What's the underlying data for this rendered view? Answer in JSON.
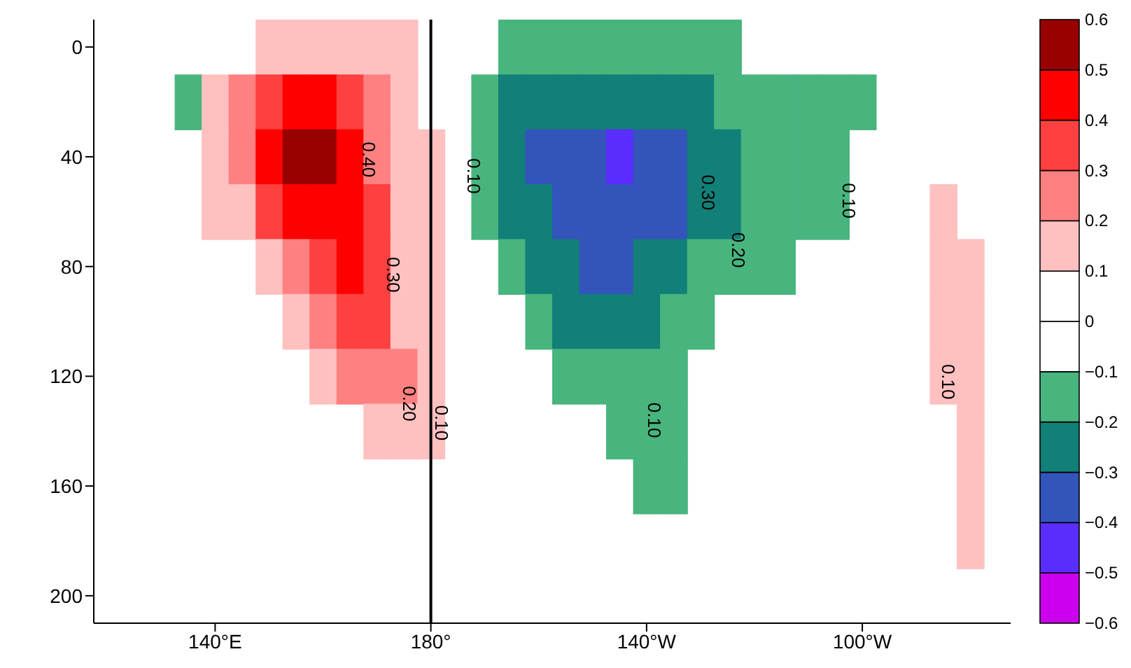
{
  "chart_data": {
    "type": "heatmap",
    "categories": [
      null,
      null,
      null,
      null,
      "140°E",
      null,
      null,
      null,
      null,
      null,
      null,
      null,
      "180°",
      null,
      null,
      null,
      null,
      null,
      null,
      null,
      "140°W",
      null,
      null,
      null,
      null,
      null,
      null,
      null,
      "100°W",
      null,
      null,
      null,
      null,
      null
    ],
    "y_categories": [
      "0",
      null,
      "40",
      null,
      "80",
      null,
      "120",
      null,
      "160",
      null,
      "200"
    ],
    "clim": [
      -0.6,
      0.6
    ],
    "cticks": [
      {
        "value": -0.6,
        "label": "−0.6"
      },
      {
        "value": -0.5,
        "label": "−0.5"
      },
      {
        "value": -0.4,
        "label": "−0.4"
      },
      {
        "value": -0.3,
        "label": "−0.3"
      },
      {
        "value": -0.2,
        "label": "−0.2"
      },
      {
        "value": -0.1,
        "label": "−0.1"
      },
      0,
      0.1,
      0.2,
      0.3,
      0.4,
      0.5,
      0.6
    ],
    "colors": [
      "#cc00ee",
      "#5a2dff",
      "#3355bb",
      "#127f78",
      "#48b47e",
      "#ffffff",
      "#ffffff",
      "#ffc0c0",
      "#ff8080",
      "#ff4040",
      "#ff0000",
      "#990000"
    ],
    "cells": [
      [
        null,
        null,
        null,
        null,
        null,
        null,
        0.15,
        0.15,
        0.15,
        0.15,
        0.15,
        0.15,
        null,
        null,
        null,
        -0.15,
        -0.15,
        -0.15,
        -0.15,
        -0.15,
        -0.15,
        -0.15,
        -0.15,
        -0.15,
        null,
        null,
        null,
        null,
        null,
        null,
        null,
        null,
        null,
        null
      ],
      [
        null,
        null,
        null,
        -0.15,
        0.15,
        0.25,
        0.35,
        0.45,
        0.45,
        0.35,
        0.25,
        0.15,
        null,
        null,
        -0.15,
        -0.25,
        -0.25,
        -0.25,
        -0.25,
        -0.25,
        -0.25,
        -0.25,
        -0.25,
        -0.15,
        -0.15,
        -0.15,
        -0.15,
        -0.15,
        -0.15,
        null,
        null,
        null,
        null,
        null
      ],
      [
        null,
        null,
        null,
        null,
        0.15,
        0.25,
        0.45,
        0.55,
        0.55,
        0.45,
        0.25,
        0.15,
        0.15,
        null,
        -0.15,
        -0.25,
        -0.35,
        -0.35,
        -0.35,
        -0.45,
        -0.35,
        -0.35,
        -0.25,
        -0.25,
        -0.15,
        -0.15,
        -0.15,
        -0.15,
        null,
        null,
        null,
        null,
        null,
        null
      ],
      [
        null,
        null,
        null,
        null,
        0.15,
        0.15,
        0.35,
        0.45,
        0.45,
        0.45,
        0.35,
        0.15,
        0.15,
        null,
        -0.15,
        -0.25,
        -0.25,
        -0.35,
        -0.35,
        -0.35,
        -0.35,
        -0.35,
        -0.25,
        -0.25,
        -0.15,
        -0.15,
        -0.15,
        -0.15,
        null,
        null,
        null,
        0.15,
        null,
        null
      ],
      [
        null,
        null,
        null,
        null,
        null,
        null,
        0.15,
        0.25,
        0.35,
        0.45,
        0.35,
        0.15,
        0.15,
        null,
        null,
        -0.15,
        -0.25,
        -0.25,
        -0.35,
        -0.35,
        -0.25,
        -0.25,
        -0.15,
        -0.15,
        -0.15,
        -0.15,
        null,
        null,
        null,
        null,
        null,
        0.15,
        0.15,
        null
      ],
      [
        null,
        null,
        null,
        null,
        null,
        null,
        null,
        0.15,
        0.25,
        0.35,
        0.35,
        0.15,
        0.15,
        null,
        null,
        null,
        -0.15,
        -0.25,
        -0.25,
        -0.25,
        -0.25,
        -0.15,
        -0.15,
        null,
        null,
        null,
        null,
        null,
        null,
        null,
        null,
        0.15,
        0.15,
        null
      ],
      [
        null,
        null,
        null,
        null,
        null,
        null,
        null,
        null,
        0.15,
        0.25,
        0.25,
        0.25,
        0.15,
        null,
        null,
        null,
        null,
        -0.15,
        -0.15,
        -0.15,
        -0.15,
        -0.15,
        null,
        null,
        null,
        null,
        null,
        null,
        null,
        null,
        null,
        0.15,
        0.15,
        null
      ],
      [
        null,
        null,
        null,
        null,
        null,
        null,
        null,
        null,
        null,
        null,
        0.15,
        0.15,
        0.15,
        null,
        null,
        null,
        null,
        null,
        null,
        -0.15,
        -0.15,
        -0.15,
        null,
        null,
        null,
        null,
        null,
        null,
        null,
        null,
        null,
        null,
        0.15,
        null
      ],
      [
        null,
        null,
        null,
        null,
        null,
        null,
        null,
        null,
        null,
        null,
        null,
        null,
        null,
        null,
        null,
        null,
        null,
        null,
        null,
        null,
        -0.15,
        -0.15,
        null,
        null,
        null,
        null,
        null,
        null,
        null,
        null,
        null,
        null,
        0.15,
        null
      ],
      [
        null,
        null,
        null,
        null,
        null,
        null,
        null,
        null,
        null,
        null,
        null,
        null,
        null,
        null,
        null,
        null,
        null,
        null,
        null,
        null,
        null,
        null,
        null,
        null,
        null,
        null,
        null,
        null,
        null,
        null,
        null,
        null,
        0.15,
        null
      ],
      [
        null,
        null,
        null,
        null,
        null,
        null,
        null,
        null,
        null,
        null,
        null,
        null,
        null,
        null,
        null,
        null,
        null,
        null,
        null,
        null,
        null,
        null,
        null,
        null,
        null,
        null,
        null,
        null,
        null,
        null,
        null,
        null,
        null,
        null
      ]
    ],
    "ref_lines": [
      {
        "axis": "x",
        "value": "180°",
        "color": "#000000"
      }
    ],
    "annotations": [
      "0.40",
      "0.30",
      "0.20",
      "0.10",
      "0.10",
      "0.30",
      "0.20",
      "0.10",
      "0.10",
      "0.10"
    ]
  }
}
